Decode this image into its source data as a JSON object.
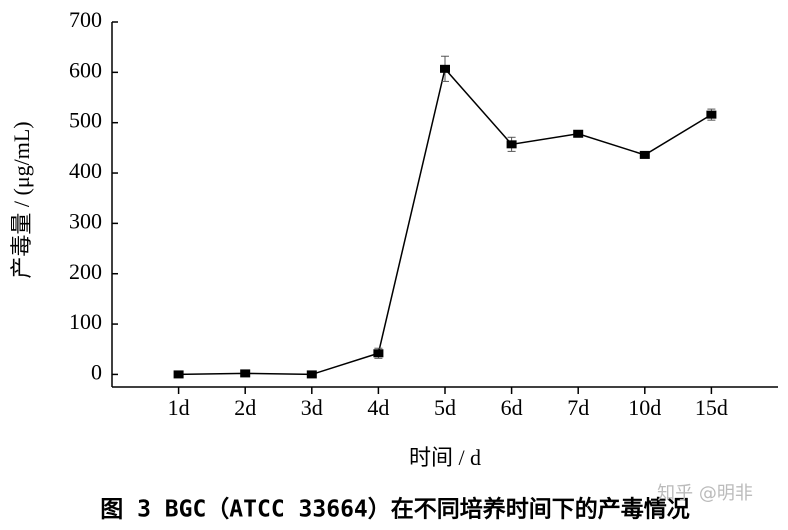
{
  "chart_data": {
    "type": "line",
    "x_label": "时间 / d",
    "y_label": "产毒量 / (μg/mL)",
    "caption": "图 3 BGC（ATCC 33664）在不同培养时间下的产毒情况",
    "watermark": "知乎 @明非",
    "categories": [
      "1d",
      "2d",
      "3d",
      "4d",
      "5d",
      "6d",
      "7d",
      "10d",
      "15d"
    ],
    "values": [
      0,
      2,
      0,
      42,
      607,
      457,
      478,
      436,
      516
    ],
    "errors": [
      3,
      3,
      3,
      10,
      25,
      14,
      5,
      4,
      11
    ],
    "color": "#000000",
    "ylim": [
      -25,
      700
    ],
    "yticks": [
      0,
      100,
      200,
      300,
      400,
      500,
      600,
      700
    ]
  }
}
